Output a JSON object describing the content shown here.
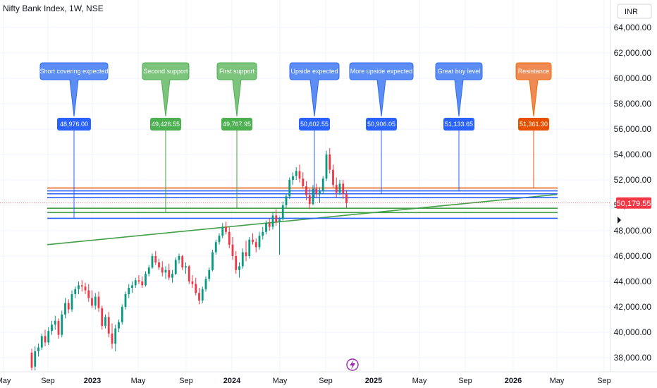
{
  "chart_data": {
    "type": "candlestick",
    "title": "Nifty Bank Index, 1W, NSE",
    "currency": "INR",
    "ylim": [
      37000,
      65000
    ],
    "y_ticks": [
      "38,000.00",
      "40,000.00",
      "42,000.00",
      "44,000.00",
      "46,000.00",
      "48,000.00",
      "50,000.00",
      "52,000.00",
      "54,000.00",
      "56,000.00",
      "58,000.00",
      "60,000.00",
      "62,000.00",
      "64,000.00"
    ],
    "y_tick_values": [
      38000,
      40000,
      42000,
      44000,
      46000,
      48000,
      50000,
      52000,
      54000,
      56000,
      58000,
      60000,
      62000,
      64000
    ],
    "x_ticks": [
      {
        "label": "May",
        "bold": false
      },
      {
        "label": "Sep",
        "bold": false
      },
      {
        "label": "2023",
        "bold": true
      },
      {
        "label": "May",
        "bold": false
      },
      {
        "label": "Sep",
        "bold": false
      },
      {
        "label": "2024",
        "bold": true
      },
      {
        "label": "May",
        "bold": false
      },
      {
        "label": "Sep",
        "bold": false
      },
      {
        "label": "2025",
        "bold": true
      },
      {
        "label": "May",
        "bold": false
      },
      {
        "label": "Sep",
        "bold": false
      },
      {
        "label": "2026",
        "bold": true
      },
      {
        "label": "May",
        "bold": false
      },
      {
        "label": "Sep",
        "bold": false
      }
    ],
    "current_price": {
      "label": "50,179.55",
      "value": 50179.55
    },
    "levels": [
      {
        "value": 48976.0,
        "label": "48,976.00",
        "callout": "Short covering expected",
        "color": "#2962ff"
      },
      {
        "value": 49426.55,
        "label": "49,426.55",
        "callout": "Second support",
        "color": "#43a047"
      },
      {
        "value": 49767.95,
        "label": "49,767.95",
        "callout": "First support",
        "color": "#43a047"
      },
      {
        "value": 50602.55,
        "label": "50,602.55",
        "callout": "Upside expected",
        "color": "#2962ff"
      },
      {
        "value": 50906.05,
        "label": "50,906.05",
        "callout": "More upside expected",
        "color": "#2962ff"
      },
      {
        "value": 51133.65,
        "label": "51,133.65",
        "callout": "Great buy level",
        "color": "#2962ff"
      },
      {
        "value": 51361.3,
        "label": "51,361.30",
        "callout": "Resistance",
        "color": "#e65100"
      }
    ],
    "trendline": {
      "from": 46900,
      "to": 50850,
      "color": "#43a047"
    },
    "candles": [
      [
        38400,
        38700,
        37000,
        37200
      ],
      [
        37300,
        38900,
        37000,
        38500
      ],
      [
        38500,
        39100,
        38100,
        38800
      ],
      [
        38800,
        39900,
        38600,
        39700
      ],
      [
        39700,
        40200,
        38900,
        39200
      ],
      [
        39200,
        40400,
        39000,
        40100
      ],
      [
        40100,
        40900,
        39800,
        40600
      ],
      [
        40600,
        41300,
        40200,
        40900
      ],
      [
        40900,
        41100,
        39500,
        39800
      ],
      [
        39800,
        41700,
        39600,
        41400
      ],
      [
        41400,
        42700,
        41100,
        42300
      ],
      [
        42300,
        42600,
        41500,
        41800
      ],
      [
        41800,
        43300,
        41600,
        43000
      ],
      [
        43000,
        43600,
        42700,
        43400
      ],
      [
        43400,
        44000,
        43000,
        43700
      ],
      [
        43700,
        44100,
        43200,
        43600
      ],
      [
        43600,
        43900,
        43000,
        43300
      ],
      [
        43300,
        43800,
        42400,
        42700
      ],
      [
        42700,
        43300,
        41900,
        42100
      ],
      [
        42100,
        43100,
        41800,
        42800
      ],
      [
        42800,
        43200,
        41600,
        41900
      ],
      [
        41900,
        42100,
        40200,
        40500
      ],
      [
        40500,
        41400,
        40300,
        41200
      ],
      [
        41200,
        41600,
        39600,
        39900
      ],
      [
        39900,
        40700,
        38700,
        39100
      ],
      [
        39100,
        40600,
        38500,
        40300
      ],
      [
        40300,
        41000,
        40000,
        40800
      ],
      [
        40800,
        42200,
        40600,
        42000
      ],
      [
        42000,
        43200,
        41800,
        43000
      ],
      [
        43000,
        43800,
        42700,
        43500
      ],
      [
        43500,
        44000,
        43100,
        43700
      ],
      [
        43700,
        44300,
        43500,
        44100
      ],
      [
        44100,
        44500,
        43800,
        44000
      ],
      [
        44000,
        44400,
        43500,
        43700
      ],
      [
        43700,
        44800,
        43600,
        44600
      ],
      [
        44600,
        45300,
        44400,
        45100
      ],
      [
        45100,
        46200,
        45000,
        46000
      ],
      [
        46000,
        46400,
        45300,
        45500
      ],
      [
        45500,
        45800,
        44900,
        45100
      ],
      [
        45100,
        45600,
        44400,
        44700
      ],
      [
        44700,
        45200,
        44200,
        44900
      ],
      [
        44900,
        45400,
        44100,
        44300
      ],
      [
        44300,
        44900,
        43900,
        44600
      ],
      [
        44600,
        45900,
        44500,
        45700
      ],
      [
        45700,
        46200,
        45400,
        46000
      ],
      [
        46000,
        46100,
        44900,
        45100
      ],
      [
        45100,
        45500,
        44600,
        45200
      ],
      [
        45200,
        45300,
        43800,
        44000
      ],
      [
        44000,
        44500,
        43500,
        43800
      ],
      [
        43800,
        44300,
        42900,
        43100
      ],
      [
        43100,
        43500,
        42200,
        42500
      ],
      [
        42500,
        43600,
        42300,
        43400
      ],
      [
        43400,
        44400,
        43200,
        44200
      ],
      [
        44200,
        45100,
        44000,
        44900
      ],
      [
        44900,
        46500,
        44800,
        46300
      ],
      [
        46300,
        47300,
        46100,
        47100
      ],
      [
        47100,
        47800,
        46900,
        47600
      ],
      [
        47600,
        48600,
        47400,
        48300
      ],
      [
        48300,
        48700,
        47700,
        47900
      ],
      [
        47900,
        48300,
        46600,
        46900
      ],
      [
        46900,
        47500,
        45700,
        46000
      ],
      [
        46000,
        46400,
        44600,
        44900
      ],
      [
        44900,
        45500,
        44300,
        45200
      ],
      [
        45200,
        46600,
        45000,
        46300
      ],
      [
        46300,
        47200,
        45600,
        46000
      ],
      [
        46000,
        47500,
        45800,
        47300
      ],
      [
        47300,
        47800,
        46900,
        47100
      ],
      [
        47100,
        47400,
        46300,
        46700
      ],
      [
        46700,
        47900,
        46500,
        47600
      ],
      [
        47600,
        48300,
        47300,
        47900
      ],
      [
        47900,
        48800,
        47700,
        48600
      ],
      [
        48600,
        49000,
        48000,
        48300
      ],
      [
        48300,
        49500,
        48100,
        49200
      ],
      [
        49200,
        49700,
        48400,
        48700
      ],
      [
        48700,
        49100,
        46100,
        48900
      ],
      [
        48900,
        50300,
        48800,
        50000
      ],
      [
        50000,
        50900,
        49800,
        50700
      ],
      [
        50700,
        52200,
        50500,
        52000
      ],
      [
        52000,
        52600,
        51600,
        52300
      ],
      [
        52300,
        53000,
        52000,
        52700
      ],
      [
        52700,
        53200,
        51800,
        52100
      ],
      [
        52100,
        52600,
        51300,
        51500
      ],
      [
        51500,
        51900,
        50400,
        50800
      ],
      [
        50800,
        51300,
        49700,
        50100
      ],
      [
        50100,
        51600,
        50000,
        51300
      ],
      [
        51300,
        51700,
        50600,
        50900
      ],
      [
        50900,
        51400,
        50200,
        51100
      ],
      [
        51100,
        52300,
        50900,
        52100
      ],
      [
        52100,
        54300,
        51900,
        54000
      ],
      [
        54000,
        54500,
        52500,
        52800
      ],
      [
        52800,
        53200,
        51400,
        51600
      ],
      [
        51600,
        52200,
        50600,
        51000
      ],
      [
        51000,
        52000,
        50800,
        51700
      ],
      [
        51700,
        52000,
        50500,
        50900
      ],
      [
        50900,
        51200,
        49800,
        50179.55
      ]
    ]
  }
}
